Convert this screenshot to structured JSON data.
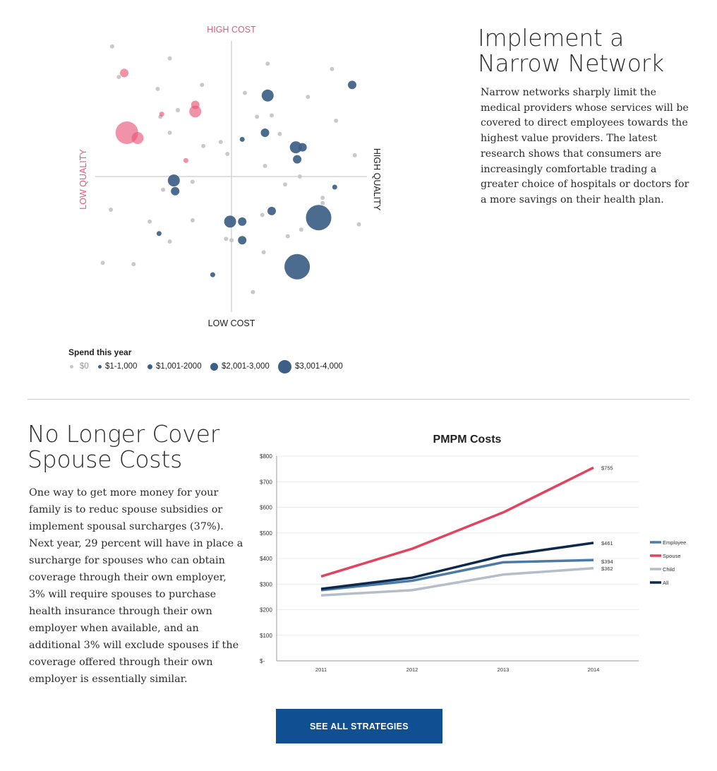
{
  "section1": {
    "title_line1": "Implement a",
    "title_line2": "Narrow Network",
    "body": "Narrow networks sharply limit the medical providers whose services will be covered to direct employees towards the highest value providers. The latest research shows that consumers are increasingly comfortable trading a greater choice of hospitals or doctors for a more savings on their health plan."
  },
  "section2": {
    "title_line1": "No Longer Cover",
    "title_line2": "Spouse Costs",
    "body": "One way to get more money for your family is to reduc spouse subsidies or implement spousal surcharges (37%). Next year, 29 percent will have in place a surcharge for spouses who can obtain coverage through their own employer, 3% will require spouses to purchase health insurance through their own employer when available, and an additional 3% will exclude spouses if the coverage offered through their own employer is essentially similar."
  },
  "button": {
    "label": "SEE ALL STRATEGIES"
  },
  "colors": {
    "accent_pink": "#e8587a",
    "navy": "#3d5f86",
    "gray_dot": "#c9c9c9",
    "button_blue": "#0f4f92",
    "employee": "#4a7aa5",
    "spouse": "#e2435f",
    "child": "#b4bec8",
    "all": "#0d2a4d"
  },
  "chart_data": [
    {
      "type": "scatter",
      "quadrant_labels": {
        "top": "HIGH COST",
        "bottom": "LOW COST",
        "left": "LOW QUALITY",
        "right": "HIGH QUALITY"
      },
      "legend_title": "Spend this year",
      "legend": [
        {
          "label": "$0",
          "category": "zero"
        },
        {
          "label": "$1-1,000",
          "category": "s1"
        },
        {
          "label": "$1,001-2000",
          "category": "s2"
        },
        {
          "label": "$2,001-3,000",
          "category": "s3"
        },
        {
          "label": "$3,001-4,000",
          "category": "s4"
        }
      ],
      "points": [
        {
          "q": -0.89,
          "c": 0.98,
          "cat": "zero"
        },
        {
          "q": -0.46,
          "c": 0.89,
          "cat": "zero"
        },
        {
          "q": 0.27,
          "c": 0.85,
          "cat": "zero"
        },
        {
          "q": 0.75,
          "c": 0.81,
          "cat": "zero"
        },
        {
          "q": -0.84,
          "c": 0.75,
          "cat": "zero"
        },
        {
          "q": -0.55,
          "c": 0.66,
          "cat": "zero"
        },
        {
          "q": -0.22,
          "c": 0.69,
          "cat": "zero"
        },
        {
          "q": 0.1,
          "c": 0.63,
          "cat": "zero"
        },
        {
          "q": 0.57,
          "c": 0.6,
          "cat": "zero"
        },
        {
          "q": -0.4,
          "c": 0.5,
          "cat": "zero"
        },
        {
          "q": 0.3,
          "c": 0.46,
          "cat": "zero"
        },
        {
          "q": 0.78,
          "c": 0.42,
          "cat": "zero"
        },
        {
          "q": -0.46,
          "c": 0.33,
          "cat": "zero"
        },
        {
          "q": 0.36,
          "c": 0.32,
          "cat": "zero"
        },
        {
          "q": -0.21,
          "c": 0.23,
          "cat": "zero"
        },
        {
          "q": -0.08,
          "c": 0.26,
          "cat": "zero"
        },
        {
          "q": 0.92,
          "c": 0.16,
          "cat": "zero"
        },
        {
          "q": -0.03,
          "c": 0.17,
          "cat": "zero"
        },
        {
          "q": 0.25,
          "c": 0.08,
          "cat": "zero"
        },
        {
          "q": 0.51,
          "c": 0.0,
          "cat": "zero"
        },
        {
          "q": -0.29,
          "c": -0.04,
          "cat": "zero"
        },
        {
          "q": 0.4,
          "c": -0.06,
          "cat": "zero"
        },
        {
          "q": -0.51,
          "c": -0.1,
          "cat": "zero"
        },
        {
          "q": 0.68,
          "c": -0.16,
          "cat": "zero"
        },
        {
          "q": 0.68,
          "c": -0.2,
          "cat": "zero"
        },
        {
          "q": -0.9,
          "c": -0.25,
          "cat": "zero"
        },
        {
          "q": 0.23,
          "c": -0.29,
          "cat": "zero"
        },
        {
          "q": -0.61,
          "c": -0.34,
          "cat": "zero"
        },
        {
          "q": -0.29,
          "c": -0.33,
          "cat": "zero"
        },
        {
          "q": 0.52,
          "c": -0.4,
          "cat": "zero"
        },
        {
          "q": 0.95,
          "c": -0.36,
          "cat": "zero"
        },
        {
          "q": 0.42,
          "c": -0.45,
          "cat": "zero"
        },
        {
          "q": -0.46,
          "c": -0.49,
          "cat": "zero"
        },
        {
          "q": -0.04,
          "c": -0.47,
          "cat": "zero"
        },
        {
          "q": -0.0,
          "c": -0.48,
          "cat": "zero"
        },
        {
          "q": 0.24,
          "c": -0.57,
          "cat": "zero"
        },
        {
          "q": -0.96,
          "c": -0.65,
          "cat": "zero"
        },
        {
          "q": -0.73,
          "c": -0.66,
          "cat": "zero"
        },
        {
          "q": 0.16,
          "c": -0.87,
          "cat": "zero"
        },
        {
          "q": -0.53,
          "c": 0.45,
          "cat": "zero"
        },
        {
          "q": 0.19,
          "c": 0.45,
          "cat": "zero"
        },
        {
          "q": -0.8,
          "c": 0.78,
          "cat": "pink",
          "size": "s2"
        },
        {
          "q": -0.27,
          "c": 0.54,
          "cat": "pink",
          "size": "s2"
        },
        {
          "q": -0.27,
          "c": 0.49,
          "cat": "pink",
          "size": "s3"
        },
        {
          "q": -0.52,
          "c": 0.47,
          "cat": "pink",
          "size": "s1"
        },
        {
          "q": -0.78,
          "c": 0.33,
          "cat": "pink",
          "size": "s4xl"
        },
        {
          "q": -0.7,
          "c": 0.29,
          "cat": "pink",
          "size": "s3"
        },
        {
          "q": -0.34,
          "c": 0.12,
          "cat": "pink",
          "size": "s1"
        },
        {
          "q": 0.9,
          "c": 0.69,
          "cat": "navy",
          "size": "s2"
        },
        {
          "q": 0.27,
          "c": 0.61,
          "cat": "navy",
          "size": "s3"
        },
        {
          "q": 0.25,
          "c": 0.33,
          "cat": "navy",
          "size": "s2"
        },
        {
          "q": 0.08,
          "c": 0.28,
          "cat": "navy",
          "size": "s1"
        },
        {
          "q": 0.48,
          "c": 0.22,
          "cat": "navy",
          "size": "s3"
        },
        {
          "q": 0.53,
          "c": 0.22,
          "cat": "navy",
          "size": "s2"
        },
        {
          "q": 0.49,
          "c": 0.13,
          "cat": "navy",
          "size": "s2"
        },
        {
          "q": -0.43,
          "c": -0.03,
          "cat": "navy",
          "size": "s3"
        },
        {
          "q": -0.42,
          "c": -0.11,
          "cat": "navy",
          "size": "s2"
        },
        {
          "q": 0.77,
          "c": -0.08,
          "cat": "navy",
          "size": "s1"
        },
        {
          "q": 0.3,
          "c": -0.26,
          "cat": "navy",
          "size": "s2"
        },
        {
          "q": -0.01,
          "c": -0.34,
          "cat": "navy",
          "size": "s3"
        },
        {
          "q": 0.08,
          "c": -0.34,
          "cat": "navy",
          "size": "s2"
        },
        {
          "q": 0.65,
          "c": -0.31,
          "cat": "navy",
          "size": "s4"
        },
        {
          "q": -0.54,
          "c": -0.43,
          "cat": "navy",
          "size": "s1"
        },
        {
          "q": 0.08,
          "c": -0.48,
          "cat": "navy",
          "size": "s2"
        },
        {
          "q": 0.49,
          "c": -0.68,
          "cat": "navy",
          "size": "s4"
        },
        {
          "q": -0.14,
          "c": -0.74,
          "cat": "navy",
          "size": "s1"
        }
      ]
    },
    {
      "type": "line",
      "title": "PMPM Costs",
      "categories": [
        "2011",
        "2012",
        "2013",
        "2014"
      ],
      "yticks": [
        "$-",
        "$100",
        "$200",
        "$300",
        "$400",
        "$500",
        "$600",
        "$700",
        "$800"
      ],
      "ylim": [
        0,
        800
      ],
      "series": [
        {
          "name": "Employee",
          "values": [
            276,
            313,
            385,
            394
          ],
          "end_label": "$394"
        },
        {
          "name": "Spouse",
          "values": [
            330,
            438,
            580,
            755
          ],
          "end_label": "$755"
        },
        {
          "name": "Child",
          "values": [
            256,
            276,
            337,
            362
          ],
          "end_label": "$362"
        },
        {
          "name": "All",
          "values": [
            281,
            325,
            411,
            461
          ],
          "end_label": "$461"
        }
      ]
    }
  ]
}
